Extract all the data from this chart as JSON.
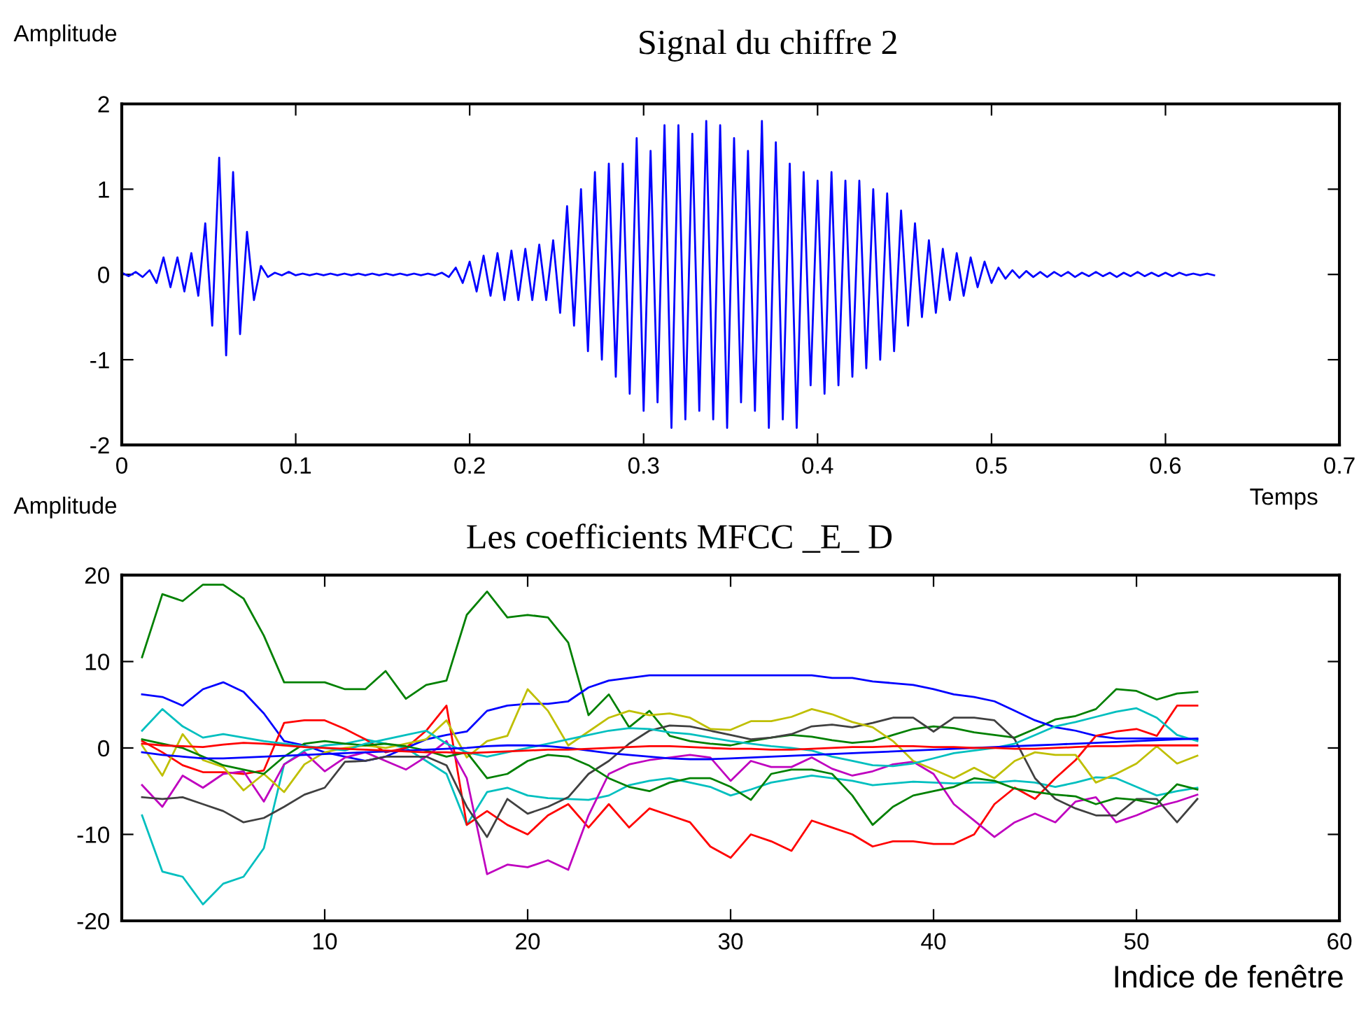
{
  "chart_data": [
    {
      "type": "line",
      "title": "Signal du chiffre 2",
      "ylabel": "Amplitude",
      "xlabel": "Temps",
      "xlim": [
        0,
        0.7
      ],
      "xticks": [
        0,
        0.1,
        0.2,
        0.3,
        0.4,
        0.5,
        0.6,
        0.7
      ],
      "ylim": [
        -2,
        2
      ],
      "yticks": [
        -2,
        -1,
        0,
        1,
        2
      ],
      "grid": false,
      "legend": false,
      "series": [
        {
          "color": "#0000ff",
          "x": [
            0,
            0.004,
            0.008,
            0.012,
            0.016,
            0.02,
            0.024,
            0.028,
            0.032,
            0.036,
            0.04,
            0.044,
            0.048,
            0.052,
            0.056,
            0.06,
            0.064,
            0.068,
            0.072,
            0.076,
            0.08,
            0.084,
            0.088,
            0.092,
            0.096,
            0.1,
            0.104,
            0.108,
            0.112,
            0.116,
            0.12,
            0.124,
            0.128,
            0.132,
            0.136,
            0.14,
            0.144,
            0.148,
            0.152,
            0.156,
            0.16,
            0.164,
            0.168,
            0.172,
            0.176,
            0.18,
            0.184,
            0.188,
            0.192,
            0.196,
            0.2,
            0.204,
            0.208,
            0.212,
            0.216,
            0.22,
            0.224,
            0.228,
            0.232,
            0.236,
            0.24,
            0.244,
            0.248,
            0.252,
            0.256,
            0.26,
            0.264,
            0.268,
            0.272,
            0.276,
            0.28,
            0.284,
            0.288,
            0.292,
            0.296,
            0.3,
            0.304,
            0.308,
            0.312,
            0.316,
            0.32,
            0.324,
            0.328,
            0.332,
            0.336,
            0.34,
            0.344,
            0.348,
            0.352,
            0.356,
            0.36,
            0.364,
            0.368,
            0.372,
            0.376,
            0.38,
            0.384,
            0.388,
            0.392,
            0.396,
            0.4,
            0.404,
            0.408,
            0.412,
            0.416,
            0.42,
            0.424,
            0.428,
            0.432,
            0.436,
            0.44,
            0.444,
            0.448,
            0.452,
            0.456,
            0.46,
            0.464,
            0.468,
            0.472,
            0.476,
            0.48,
            0.484,
            0.488,
            0.492,
            0.496,
            0.5,
            0.504,
            0.508,
            0.512,
            0.516,
            0.52,
            0.524,
            0.528,
            0.532,
            0.536,
            0.54,
            0.544,
            0.548,
            0.552,
            0.556,
            0.56,
            0.564,
            0.568,
            0.572,
            0.576,
            0.58,
            0.584,
            0.588,
            0.592,
            0.596,
            0.6,
            0.604,
            0.608,
            0.612,
            0.616,
            0.62,
            0.624,
            0.628
          ],
          "values": [
            0.02,
            -0.02,
            0.03,
            -0.03,
            0.05,
            -0.1,
            0.2,
            -0.15,
            0.2,
            -0.2,
            0.25,
            -0.25,
            0.6,
            -0.6,
            1.37,
            -0.95,
            1.2,
            -0.7,
            0.5,
            -0.3,
            0.1,
            -0.03,
            0.02,
            -0.01,
            0.03,
            -0.01,
            0.01,
            -0.01,
            0.01,
            -0.01,
            0.01,
            -0.01,
            0.01,
            -0.01,
            0.01,
            -0.01,
            0.01,
            -0.01,
            0.01,
            -0.01,
            0.01,
            -0.01,
            0.01,
            -0.01,
            0.01,
            -0.01,
            0.02,
            -0.03,
            0.08,
            -0.1,
            0.15,
            -0.2,
            0.22,
            -0.25,
            0.25,
            -0.3,
            0.28,
            -0.3,
            0.3,
            -0.3,
            0.35,
            -0.3,
            0.4,
            -0.45,
            0.8,
            -0.6,
            1.0,
            -0.9,
            1.2,
            -1.0,
            1.3,
            -1.2,
            1.3,
            -1.4,
            1.6,
            -1.6,
            1.45,
            -1.5,
            1.75,
            -1.8,
            1.75,
            -1.7,
            1.65,
            -1.6,
            1.8,
            -1.7,
            1.75,
            -1.8,
            1.6,
            -1.5,
            1.45,
            -1.6,
            1.8,
            -1.8,
            1.55,
            -1.7,
            1.3,
            -1.8,
            1.2,
            -1.3,
            1.1,
            -1.4,
            1.2,
            -1.3,
            1.1,
            -1.2,
            1.1,
            -1.1,
            1.0,
            -1.0,
            0.95,
            -0.9,
            0.75,
            -0.6,
            0.6,
            -0.5,
            0.4,
            -0.45,
            0.3,
            -0.3,
            0.25,
            -0.25,
            0.2,
            -0.15,
            0.15,
            -0.1,
            0.08,
            -0.05,
            0.05,
            -0.04,
            0.04,
            -0.03,
            0.03,
            -0.03,
            0.03,
            -0.02,
            0.03,
            -0.03,
            0.02,
            -0.02,
            0.03,
            -0.02,
            0.02,
            -0.03,
            0.02,
            -0.02,
            0.03,
            -0.02,
            0.02,
            -0.02,
            0.02,
            -0.02,
            0.02,
            -0.01,
            0.01,
            -0.01,
            0.01,
            -0.01
          ]
        }
      ]
    },
    {
      "type": "line",
      "title": "Les coefficients MFCC _E_ D",
      "ylabel": "Amplitude",
      "xlabel": "Indice de fenêtre",
      "xlim": [
        0,
        60
      ],
      "xticks": [
        10,
        20,
        30,
        40,
        50,
        60
      ],
      "ylim": [
        -20,
        20
      ],
      "yticks": [
        -20,
        -10,
        0,
        10,
        20
      ],
      "grid": false,
      "legend": false,
      "x": [
        1,
        2,
        3,
        4,
        5,
        6,
        7,
        8,
        9,
        10,
        11,
        12,
        13,
        14,
        15,
        16,
        17,
        18,
        19,
        20,
        21,
        22,
        23,
        24,
        25,
        26,
        27,
        28,
        29,
        30,
        31,
        32,
        33,
        34,
        35,
        36,
        37,
        38,
        39,
        40,
        41,
        42,
        43,
        44,
        45,
        46,
        47,
        48,
        49,
        50,
        51,
        52,
        53
      ],
      "series": [
        {
          "color": "#008000",
          "values": [
            10.5,
            17.8,
            17,
            18.9,
            18.9,
            17.3,
            13,
            7.6,
            7.6,
            7.6,
            6.8,
            6.8,
            8.9,
            5.7,
            7.3,
            7.8,
            15.4,
            18.1,
            15.1,
            15.4,
            15.1,
            12.2,
            3.8,
            6.2,
            2.4,
            4.3,
            1.4,
            0.8,
            0.5,
            0.3,
            0.8,
            1.2,
            1.5,
            1.3,
            0.9,
            0.6,
            0.8,
            1.5,
            2.2,
            2.5,
            2.3,
            1.8,
            1.5,
            1.2,
            2.2,
            3.3,
            3.7,
            4.5,
            6.8,
            6.6,
            5.6,
            6.3,
            6.5
          ]
        },
        {
          "color": "#0000ff",
          "values": [
            6.2,
            5.9,
            4.9,
            6.8,
            7.6,
            6.5,
            4,
            0.8,
            0.3,
            -0.5,
            -1,
            -1.5,
            -1,
            0,
            1,
            1.5,
            1.9,
            4.3,
            4.9,
            5.1,
            5.1,
            5.4,
            7,
            7.8,
            8.1,
            8.4,
            8.4,
            8.4,
            8.4,
            8.4,
            8.4,
            8.4,
            8.4,
            8.4,
            8.1,
            8.1,
            7.7,
            7.5,
            7.3,
            6.8,
            6.2,
            5.9,
            5.4,
            4.3,
            3.2,
            2.4,
            2,
            1.4,
            1.1,
            1.1,
            1.1,
            1.1,
            1.0
          ]
        },
        {
          "color": "#00bfbf",
          "values": [
            -7.8,
            -14.3,
            -14.9,
            -18.1,
            -15.7,
            -14.9,
            -11.6,
            -1.9,
            -0.3,
            0.3,
            0.5,
            1,
            0.5,
            0,
            -1.5,
            -3,
            -8.9,
            -5.1,
            -4.6,
            -5.5,
            -5.8,
            -5.9,
            -6,
            -5.5,
            -4.3,
            -3.8,
            -3.5,
            -4,
            -4.5,
            -5.5,
            -4.8,
            -4,
            -3.6,
            -3.2,
            -3.5,
            -3.8,
            -4.3,
            -4.1,
            -3.9,
            -4,
            -4.1,
            -4,
            -4,
            -3.8,
            -4,
            -4.5,
            -4,
            -3.4,
            -3.5,
            -4.5,
            -5.5,
            -5,
            -4.6
          ]
        },
        {
          "color": "#ff0000",
          "values": [
            0.8,
            -0.5,
            -2,
            -2.8,
            -2.8,
            -3,
            -2.6,
            2.9,
            3.2,
            3.2,
            2.2,
            1,
            -0.5,
            0,
            2,
            4.9,
            -8.9,
            -7.3,
            -8.9,
            -10,
            -7.8,
            -6.5,
            -9.2,
            -6.5,
            -9.2,
            -7,
            -7.8,
            -8.6,
            -11.4,
            -12.7,
            -10,
            -10.8,
            -11.9,
            -8.4,
            -9.2,
            -10,
            -11.4,
            -10.8,
            -10.8,
            -11.1,
            -11.1,
            -10,
            -6.5,
            -4.6,
            -5.9,
            -3.5,
            -1.4,
            1.4,
            1.9,
            2.2,
            1.4,
            4.9,
            4.9
          ]
        },
        {
          "color": "#bf00bf",
          "values": [
            -4.3,
            -6.8,
            -3.2,
            -4.6,
            -3,
            -2.7,
            -6.2,
            -1.9,
            -0.5,
            -2.7,
            -1.1,
            -0.5,
            -1.5,
            -2.5,
            -1,
            0.8,
            -3.5,
            -14.6,
            -13.5,
            -13.8,
            -13,
            -14.1,
            -7.8,
            -3,
            -1.9,
            -1.4,
            -1.1,
            -0.8,
            -1.1,
            -3.8,
            -1.5,
            -2.2,
            -2.2,
            -1.1,
            -2.4,
            -3.2,
            -2.7,
            -1.9,
            -1.6,
            -3,
            -6.5,
            -8.4,
            -10.3,
            -8.6,
            -7.6,
            -8.6,
            -6.2,
            -5.7,
            -8.6,
            -7.8,
            -6.8,
            -6.2,
            -5.4
          ]
        },
        {
          "color": "#404040",
          "values": [
            -5.7,
            -5.9,
            -5.7,
            -6.5,
            -7.3,
            -8.6,
            -8.1,
            -6.8,
            -5.4,
            -4.6,
            -1.6,
            -1.5,
            -1,
            -1,
            -1,
            -2,
            -6.8,
            -10.3,
            -5.9,
            -7.6,
            -6.8,
            -5.7,
            -3,
            -1.5,
            0.5,
            2,
            2.6,
            2.5,
            2,
            1.5,
            1,
            1.2,
            1.6,
            2.5,
            2.7,
            2.4,
            2.9,
            3.5,
            3.5,
            1.9,
            3.5,
            3.5,
            3.2,
            1,
            -3.5,
            -5.9,
            -7,
            -7.8,
            -7.8,
            -5.9,
            -5.9,
            -8.6,
            -5.9
          ]
        },
        {
          "color": "#bfbf00",
          "values": [
            0.3,
            -3.2,
            1.6,
            -1.4,
            -2.2,
            -4.9,
            -3,
            -5.1,
            -1.9,
            -0.5,
            0,
            0.3,
            0,
            0.5,
            1,
            3.2,
            -1.1,
            0.8,
            1.4,
            6.8,
            4.3,
            0.3,
            1.9,
            3.5,
            4.3,
            3.8,
            4,
            3.5,
            2.2,
            2.1,
            3.1,
            3.1,
            3.6,
            4.5,
            3.9,
            3,
            2.4,
            0.8,
            -1.5,
            -2.5,
            -3.5,
            -2.3,
            -3.5,
            -1.5,
            -0.5,
            -0.8,
            -0.8,
            -4,
            -3,
            -1.8,
            0.2,
            -1.8,
            -0.9
          ]
        },
        {
          "color": "#008000",
          "values": [
            1,
            0.5,
            0,
            -1,
            -2,
            -2.5,
            -3,
            -1,
            0.5,
            0.8,
            0.5,
            0.3,
            0.5,
            0.2,
            -0.3,
            -1,
            -0.5,
            -3.5,
            -3,
            -1.5,
            -0.8,
            -1,
            -2,
            -3.5,
            -4.5,
            -5,
            -4,
            -3.5,
            -3.5,
            -4.5,
            -6,
            -3,
            -2.5,
            -2.5,
            -3,
            -5.5,
            -8.9,
            -6.8,
            -5.5,
            -5,
            -4.5,
            -3.5,
            -3.8,
            -4.7,
            -5.1,
            -5.4,
            -5.6,
            -6.5,
            -5.8,
            -6,
            -6.5,
            -4.2,
            -4.8
          ]
        },
        {
          "color": "#00bfbf",
          "values": [
            2,
            4.5,
            2.5,
            1.2,
            1.6,
            1.2,
            0.8,
            0.5,
            0.2,
            0,
            -0.3,
            0.5,
            1,
            1.5,
            2,
            0.5,
            -0.5,
            -1,
            -0.5,
            0,
            0.5,
            1,
            1.5,
            2,
            2.3,
            2.2,
            1.8,
            1.6,
            1.2,
            0.8,
            0.5,
            0.2,
            0,
            -0.3,
            -1,
            -1.5,
            -2,
            -2.1,
            -1.8,
            -1.2,
            -0.6,
            -0.3,
            0,
            0.5,
            1.5,
            2.5,
            3,
            3.6,
            4.2,
            4.6,
            3.5,
            1.5,
            0.8
          ]
        },
        {
          "color": "#0000ff",
          "values": [
            -0.5,
            -0.8,
            -1,
            -1.2,
            -1.2,
            -1.1,
            -1,
            -0.9,
            -0.8,
            -0.7,
            -0.6,
            -0.5,
            -0.4,
            -0.3,
            -0.2,
            -0.1,
            0,
            0.2,
            0.3,
            0.3,
            0.2,
            0,
            -0.3,
            -0.6,
            -0.8,
            -1,
            -1.2,
            -1.3,
            -1.3,
            -1.2,
            -1.1,
            -1,
            -0.9,
            -0.8,
            -0.7,
            -0.6,
            -0.5,
            -0.4,
            -0.3,
            -0.2,
            -0.1,
            0,
            0.1,
            0.2,
            0.3,
            0.4,
            0.5,
            0.6,
            0.7,
            0.8,
            0.9,
            1,
            1.1
          ]
        },
        {
          "color": "#ff0000",
          "values": [
            0.5,
            0.3,
            0.2,
            0.1,
            0.4,
            0.6,
            0.5,
            0.3,
            0.1,
            0,
            -0.1,
            -0.2,
            -0.3,
            -0.4,
            -0.5,
            -0.5,
            -0.6,
            -0.5,
            -0.4,
            -0.3,
            -0.2,
            -0.2,
            -0.1,
            0,
            0.1,
            0.2,
            0.2,
            0.1,
            0,
            -0.1,
            -0.1,
            -0.2,
            -0.2,
            -0.1,
            0,
            0.1,
            0.1,
            0.2,
            0.2,
            0.1,
            0.1,
            0,
            0,
            -0.1,
            -0.1,
            0,
            0.1,
            0.2,
            0.2,
            0.3,
            0.3,
            0.3,
            0.3
          ]
        }
      ]
    }
  ]
}
